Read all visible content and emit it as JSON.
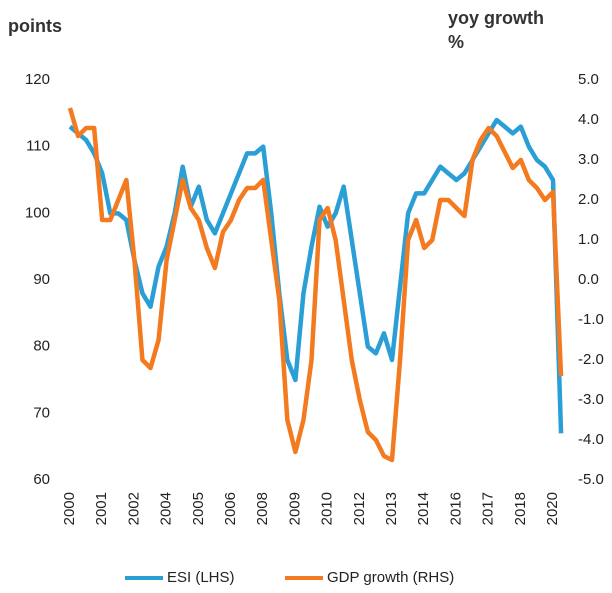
{
  "chart_data": {
    "type": "line",
    "ylabel": "points",
    "y2label": "yoy growth %",
    "categories": [
      "2000",
      null,
      null,
      null,
      "2001",
      null,
      null,
      null,
      "2002",
      null,
      null,
      null,
      "2004",
      null,
      null,
      null,
      "2005",
      null,
      null,
      null,
      "2006",
      null,
      null,
      null,
      "2008",
      null,
      null,
      null,
      "2009",
      null,
      null,
      null,
      "2010",
      null,
      null,
      null,
      "2012",
      null,
      null,
      null,
      "2013",
      null,
      null,
      null,
      "2014",
      null,
      null,
      null,
      "2016",
      null,
      null,
      null,
      "2017",
      null,
      null,
      null,
      "2018",
      null,
      null,
      null,
      "2020",
      null
    ],
    "series": [
      {
        "name": "ESI (LHS)",
        "color": "#2a9fd6",
        "axis": "y",
        "values": [
          113,
          112,
          111,
          109,
          106,
          100,
          100,
          99,
          93,
          88,
          86,
          92,
          95,
          100,
          107,
          101,
          104,
          99,
          97,
          100,
          103,
          106,
          109,
          109,
          110,
          100,
          88,
          78,
          75,
          88,
          95,
          101,
          98,
          100,
          104,
          96,
          88,
          80,
          79,
          82,
          78,
          89,
          100,
          103,
          103,
          105,
          107,
          106,
          105,
          106,
          108,
          110,
          112,
          114,
          113,
          112,
          113,
          110,
          108,
          107,
          105,
          67
        ]
      },
      {
        "name": "GDP growth (RHS)",
        "color": "#f47a20",
        "axis": "y2",
        "values": [
          4.3,
          3.6,
          3.8,
          3.8,
          1.5,
          1.5,
          2.0,
          2.5,
          0.5,
          -2.0,
          -2.2,
          -1.5,
          0.5,
          1.5,
          2.5,
          1.8,
          1.5,
          0.8,
          0.3,
          1.2,
          1.5,
          2.0,
          2.3,
          2.3,
          2.5,
          1.0,
          -0.5,
          -3.5,
          -4.3,
          -3.5,
          -2.0,
          1.5,
          1.8,
          1.0,
          -0.5,
          -2.0,
          -3.0,
          -3.8,
          -4.0,
          -4.4,
          -4.5,
          -2.0,
          1.0,
          1.5,
          0.8,
          1.0,
          2.0,
          2.0,
          1.8,
          1.6,
          3.0,
          3.5,
          3.8,
          3.6,
          3.2,
          2.8,
          3.0,
          2.5,
          2.3,
          2.0,
          2.2,
          -2.4
        ]
      }
    ],
    "ylim": [
      60,
      120
    ],
    "yticks": [
      60,
      70,
      80,
      90,
      100,
      110,
      120
    ],
    "y2lim": [
      -5,
      5
    ],
    "y2ticks": [
      {
        "value": -5,
        "label": "-5.0"
      },
      {
        "value": -4,
        "label": "-4.0"
      },
      {
        "value": -3,
        "label": "-3.0"
      },
      {
        "value": -2,
        "label": "-2.0"
      },
      {
        "value": -1,
        "label": "-1.0"
      },
      {
        "value": 0,
        "label": "0.0"
      },
      {
        "value": 1,
        "label": "1.0"
      },
      {
        "value": 2,
        "label": "2.0"
      },
      {
        "value": 3,
        "label": "3.0"
      },
      {
        "value": 4,
        "label": "4.0"
      },
      {
        "value": 5,
        "label": "5.0"
      }
    ],
    "legend": "bottom"
  }
}
